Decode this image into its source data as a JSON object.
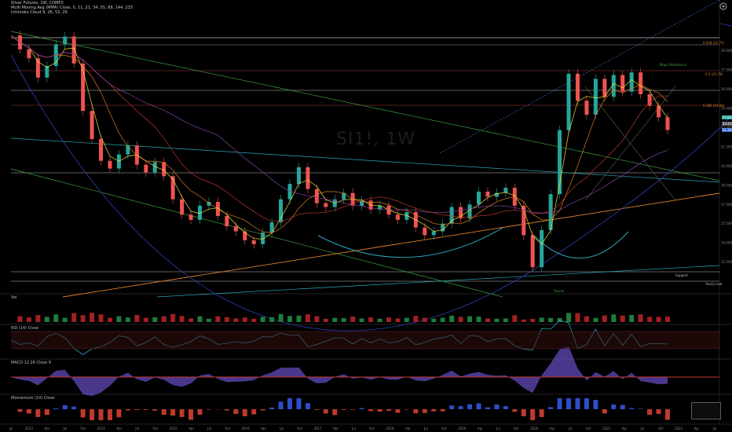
{
  "header": {
    "title": "Silver Futures, 1W, COMEX",
    "indicator1": "Multi Moving Avg (MMA) Close, 5, 11, 21, 34, 55, 89, 144, 233",
    "indicator2": "Ichimoku Cloud 9, 26, 52, 26"
  },
  "watermark": "SI1!, 1W",
  "panes": {
    "volume": {
      "label": "Vol"
    },
    "rsi": {
      "label": "RSI (14) Close"
    },
    "macd": {
      "label": "MACD 12 26 Close 9"
    },
    "hist": {
      "label": "Momentum (10) Close"
    }
  },
  "annotations": {
    "fib1": "0.618 (27.71)",
    "fib2": "0.5 (25.79)",
    "fib3": "0.382 (23.88)",
    "resistance": "Major Resistance",
    "support": "Support",
    "yearly": "Yearly Low",
    "curve_label": "Saucer"
  },
  "price_tags": {
    "current": "22.83",
    "tag2": "23.42",
    "tag3": "21.10"
  },
  "chart_data": {
    "type": "line",
    "title": "SI1!, 1W",
    "price_range": [
      11.5,
      30.5
    ],
    "x_ticks": [
      "Jul",
      "2013",
      "Apr",
      "Jul",
      "Oct",
      "2014",
      "Apr",
      "Jul",
      "Oct",
      "2015",
      "Apr",
      "Jul",
      "Oct",
      "2016",
      "Apr",
      "Jul",
      "Oct",
      "2017",
      "Apr",
      "Jul",
      "Oct",
      "2018",
      "Apr",
      "Jul",
      "Oct",
      "2019",
      "Apr",
      "Jul",
      "Oct",
      "2020",
      "Apr",
      "Jul",
      "Oct",
      "2021",
      "Apr",
      "Jul",
      "Oct",
      "2022",
      "Apr",
      "Jul"
    ],
    "y_ticks": [
      12.5,
      14.0,
      15.5,
      17.0,
      18.5,
      20.0,
      21.5,
      23.0,
      24.5,
      26.0,
      27.5,
      29.0
    ],
    "series": [
      {
        "values": [
          30.2,
          29.1,
          28.4,
          26.9,
          27.8,
          29.5,
          30.1,
          28.0,
          24.3,
          22.1,
          20.4,
          19.8,
          20.9,
          21.6,
          20.1,
          19.5,
          20.3,
          19.2,
          17.4,
          16.2,
          15.8,
          16.9,
          17.2,
          16.1,
          15.3,
          14.9,
          14.2,
          13.9,
          14.8,
          15.6,
          17.4,
          18.6,
          19.9,
          18.2,
          17.1,
          16.8,
          17.4,
          17.9,
          16.9,
          17.3,
          16.6,
          16.9,
          16.2,
          15.8,
          16.4,
          15.2,
          14.6,
          14.9,
          15.5,
          16.8,
          15.9,
          17.0,
          18.0,
          17.6,
          17.9,
          18.3,
          16.9,
          14.6,
          12.1,
          15.0,
          17.8,
          22.8,
          27.2,
          25.1,
          24.0,
          26.8,
          25.4,
          27.1,
          25.8,
          27.3,
          25.6,
          24.7,
          23.8,
          22.8
        ]
      }
    ],
    "grid": false,
    "legend": "none"
  }
}
